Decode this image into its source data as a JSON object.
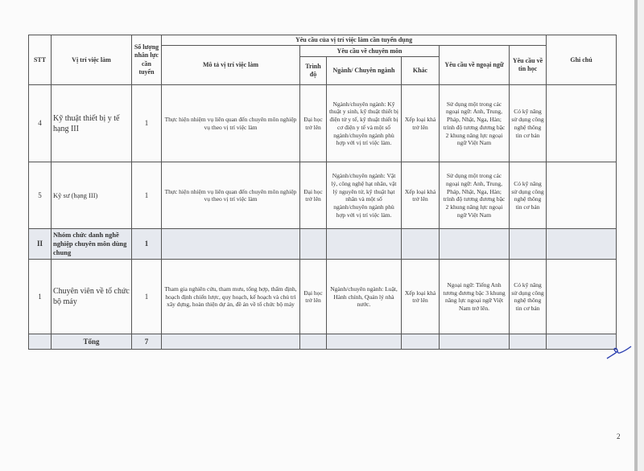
{
  "header": {
    "stt": "STT",
    "position": "Vị trí việc làm",
    "quantity": "Số lượng nhân lực cần tuyển",
    "requirements": "Yêu cầu của vị trí việc làm cần tuyển dụng",
    "description": "Mô tả vị trí việc làm",
    "professional": "Yêu cầu về chuyên môn",
    "level": "Trình độ",
    "major": "Ngành/ Chuyên ngành",
    "other": "Khác",
    "language": "Yêu cầu về ngoại ngữ",
    "it": "Yêu cầu về tin học",
    "note": "Ghi chú"
  },
  "rows": [
    {
      "stt": "4",
      "position": "Kỹ thuật thiết bị y tế hạng III",
      "quantity": "1",
      "description": "Thực hiện nhiệm vụ liên quan đến chuyên môn nghiệp vụ theo vị trí việc làm",
      "level": "Đại học trở lên",
      "major": "Ngành/chuyên ngành: Kỹ thuật y sinh, kỹ thuật thiết bị điện tử y tế, kỹ thuật thiết bị cơ điện y tế và một số ngành/chuyên ngành phù hợp với vị trí việc làm.",
      "other": "Xếp loại khá trở lên",
      "language": "Sử dụng một trong các ngoại ngữ: Anh, Trung, Pháp, Nhật, Nga, Hàn; trình độ tương đương bậc 2 khung năng lực ngoại ngữ Việt Nam",
      "it": "Có kỹ năng sử dụng công nghệ thông tin cơ bản",
      "note": ""
    },
    {
      "stt": "5",
      "position": "Kỹ sư (hạng III)",
      "quantity": "1",
      "description": "Thực hiện nhiệm vụ liên quan đến chuyên môn nghiệp vụ theo vị trí việc làm",
      "level": "Đại học trở lên",
      "major": "Ngành/chuyên ngành: Vật lý, công nghệ hạt nhân, vật lý nguyên tử, kỹ thuật hạt nhân và một số ngành/chuyên ngành phù hợp với vị trí việc làm.",
      "other": "Xếp loại khá trở lên",
      "language": "Sử dụng một trong các ngoại ngữ: Anh, Trung, Pháp, Nhật, Nga, Hàn; trình độ tương đương bậc 2 khung năng lực ngoại ngữ Việt Nam",
      "it": "Có kỹ năng sử dụng công nghệ thông tin cơ bản",
      "note": ""
    }
  ],
  "group": {
    "stt": "II",
    "position": "Nhóm chức danh nghề nghiệp chuyên môn dùng chung",
    "quantity": "1"
  },
  "row_group": {
    "stt": "1",
    "position": "Chuyên viên về tổ chức bộ máy",
    "quantity": "1",
    "description": "Tham gia nghiên cứu, tham mưu, tổng hợp, thẩm định, hoạch định chiến lược, quy hoạch, kế hoạch và chủ trì xây dựng, hoàn thiện dự án, đề án về tổ chức bộ máy",
    "level": "Đại học trở lên",
    "major": "Ngành/chuyên ngành: Luật, Hành chính, Quản lý nhà nước.",
    "other": "Xếp loại khá trở lên",
    "language": "Ngoại ngữ: Tiếng Anh tương đương bậc 3 khung năng lực ngoại ngữ Việt Nam trở lên.",
    "it": "Có kỹ năng sử dụng công nghệ thông tin cơ bản",
    "note": ""
  },
  "total": {
    "label": "Tổng",
    "quantity": "7"
  },
  "page_number": "2",
  "colors": {
    "signature": "#2b3fb0",
    "shade": "#e6e9ef"
  }
}
